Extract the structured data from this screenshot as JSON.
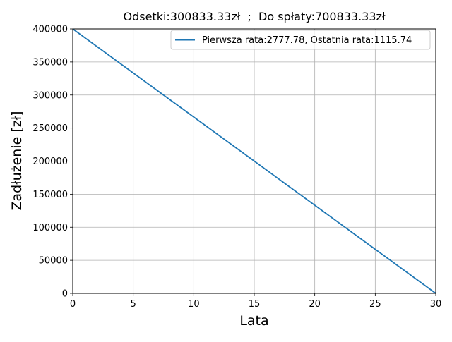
{
  "chart_data": {
    "type": "line",
    "title": "Odsetki:300833.33zł  ;  Do spłaty:700833.33zł",
    "xlabel": "Lata",
    "ylabel": "Zadłużenie [zł]",
    "xlim": [
      0,
      30
    ],
    "ylim": [
      0,
      400000
    ],
    "xticks": [
      0,
      5,
      10,
      15,
      20,
      25,
      30
    ],
    "yticks": [
      0,
      50000,
      100000,
      150000,
      200000,
      250000,
      300000,
      350000,
      400000
    ],
    "grid": true,
    "legend_position": "top-right",
    "series": [
      {
        "name": "Pierwsza rata:2777.78, Ostatnia rata:1115.74",
        "color": "#1f77b4",
        "x": [
          0,
          30
        ],
        "y": [
          400000,
          0
        ]
      }
    ]
  }
}
